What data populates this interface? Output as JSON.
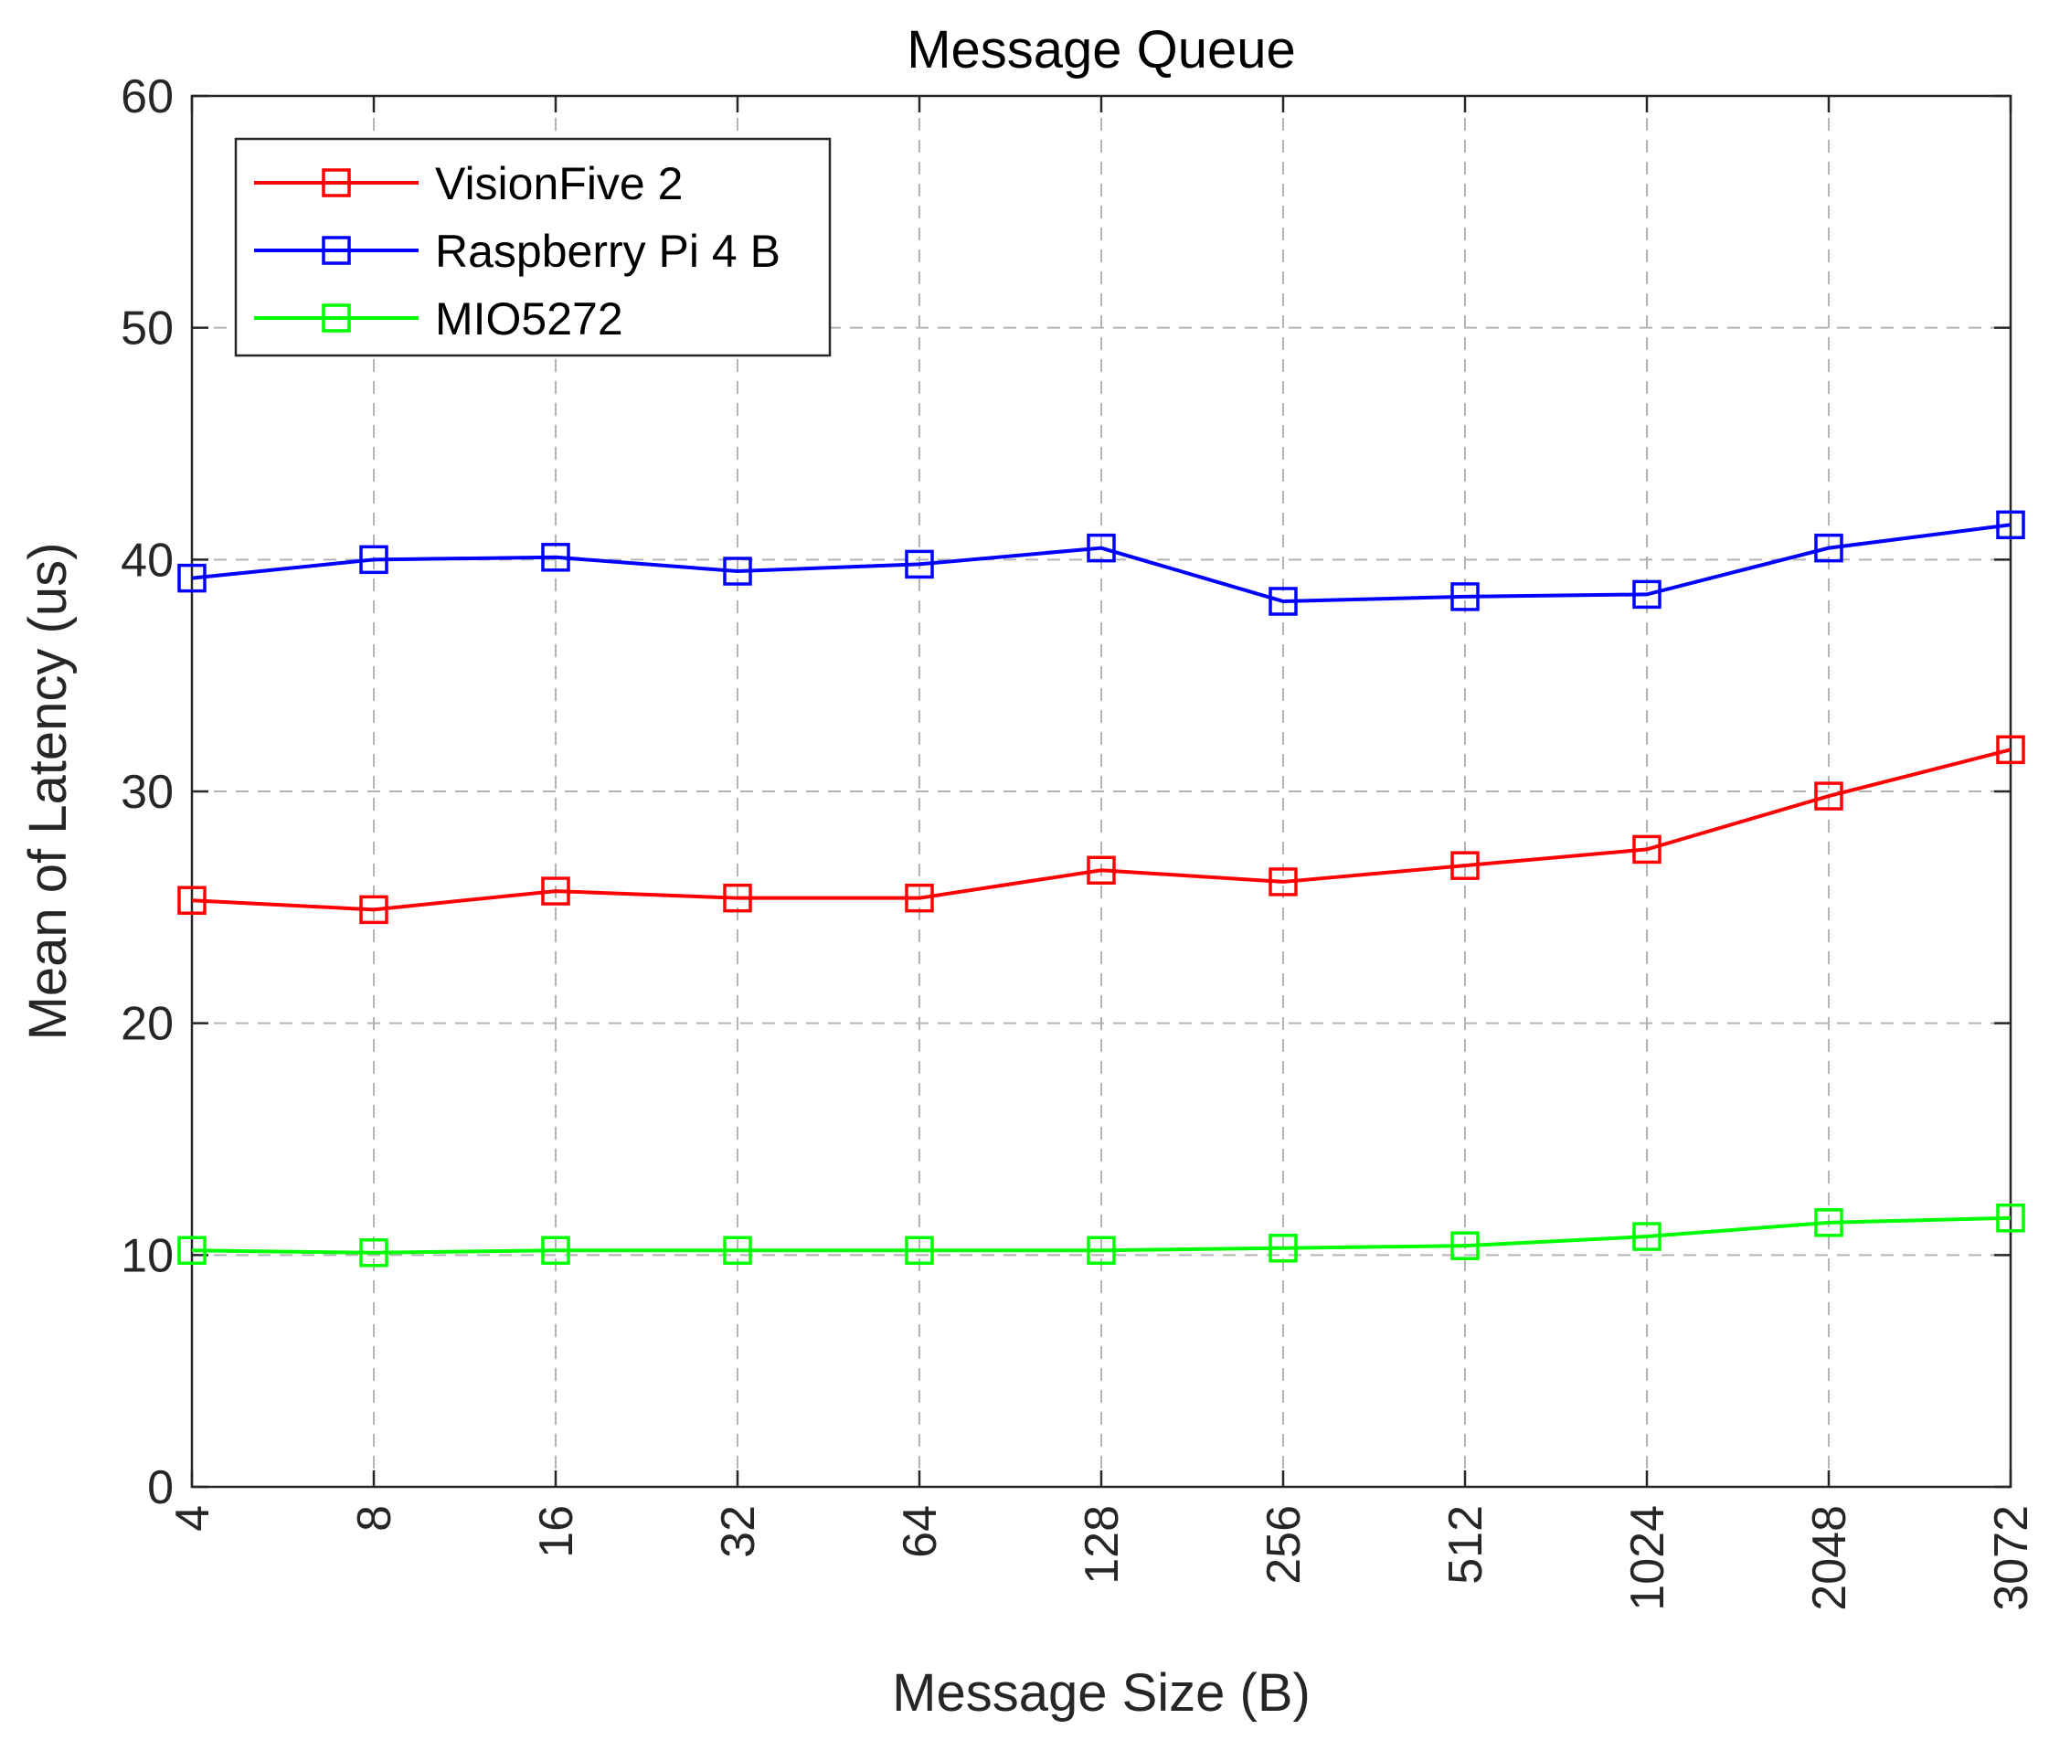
{
  "chart_data": {
    "type": "line",
    "title": "Message Queue",
    "xlabel": "Message Size (B)",
    "ylabel": "Mean of Latency (us)",
    "categories": [
      "4",
      "8",
      "16",
      "32",
      "64",
      "128",
      "256",
      "512",
      "1024",
      "2048",
      "3072"
    ],
    "ylim": [
      0,
      60
    ],
    "yticks": [
      0,
      10,
      20,
      30,
      40,
      50,
      60
    ],
    "grid": true,
    "legend_position": "top-left",
    "series": [
      {
        "name": "VisionFive 2",
        "color": "#ff0000",
        "marker": "square",
        "values": [
          25.3,
          24.9,
          25.7,
          25.4,
          25.4,
          26.6,
          26.1,
          26.8,
          27.5,
          29.8,
          31.8
        ]
      },
      {
        "name": "Raspberry Pi 4 B",
        "color": "#0000ff",
        "marker": "square",
        "values": [
          39.2,
          40.0,
          40.1,
          39.5,
          39.8,
          40.5,
          38.2,
          38.4,
          38.5,
          40.5,
          41.5
        ]
      },
      {
        "name": "MIO5272",
        "color": "#00ff00",
        "marker": "square",
        "values": [
          10.2,
          10.1,
          10.2,
          10.2,
          10.2,
          10.2,
          10.3,
          10.4,
          10.8,
          11.4,
          11.6
        ]
      }
    ]
  }
}
